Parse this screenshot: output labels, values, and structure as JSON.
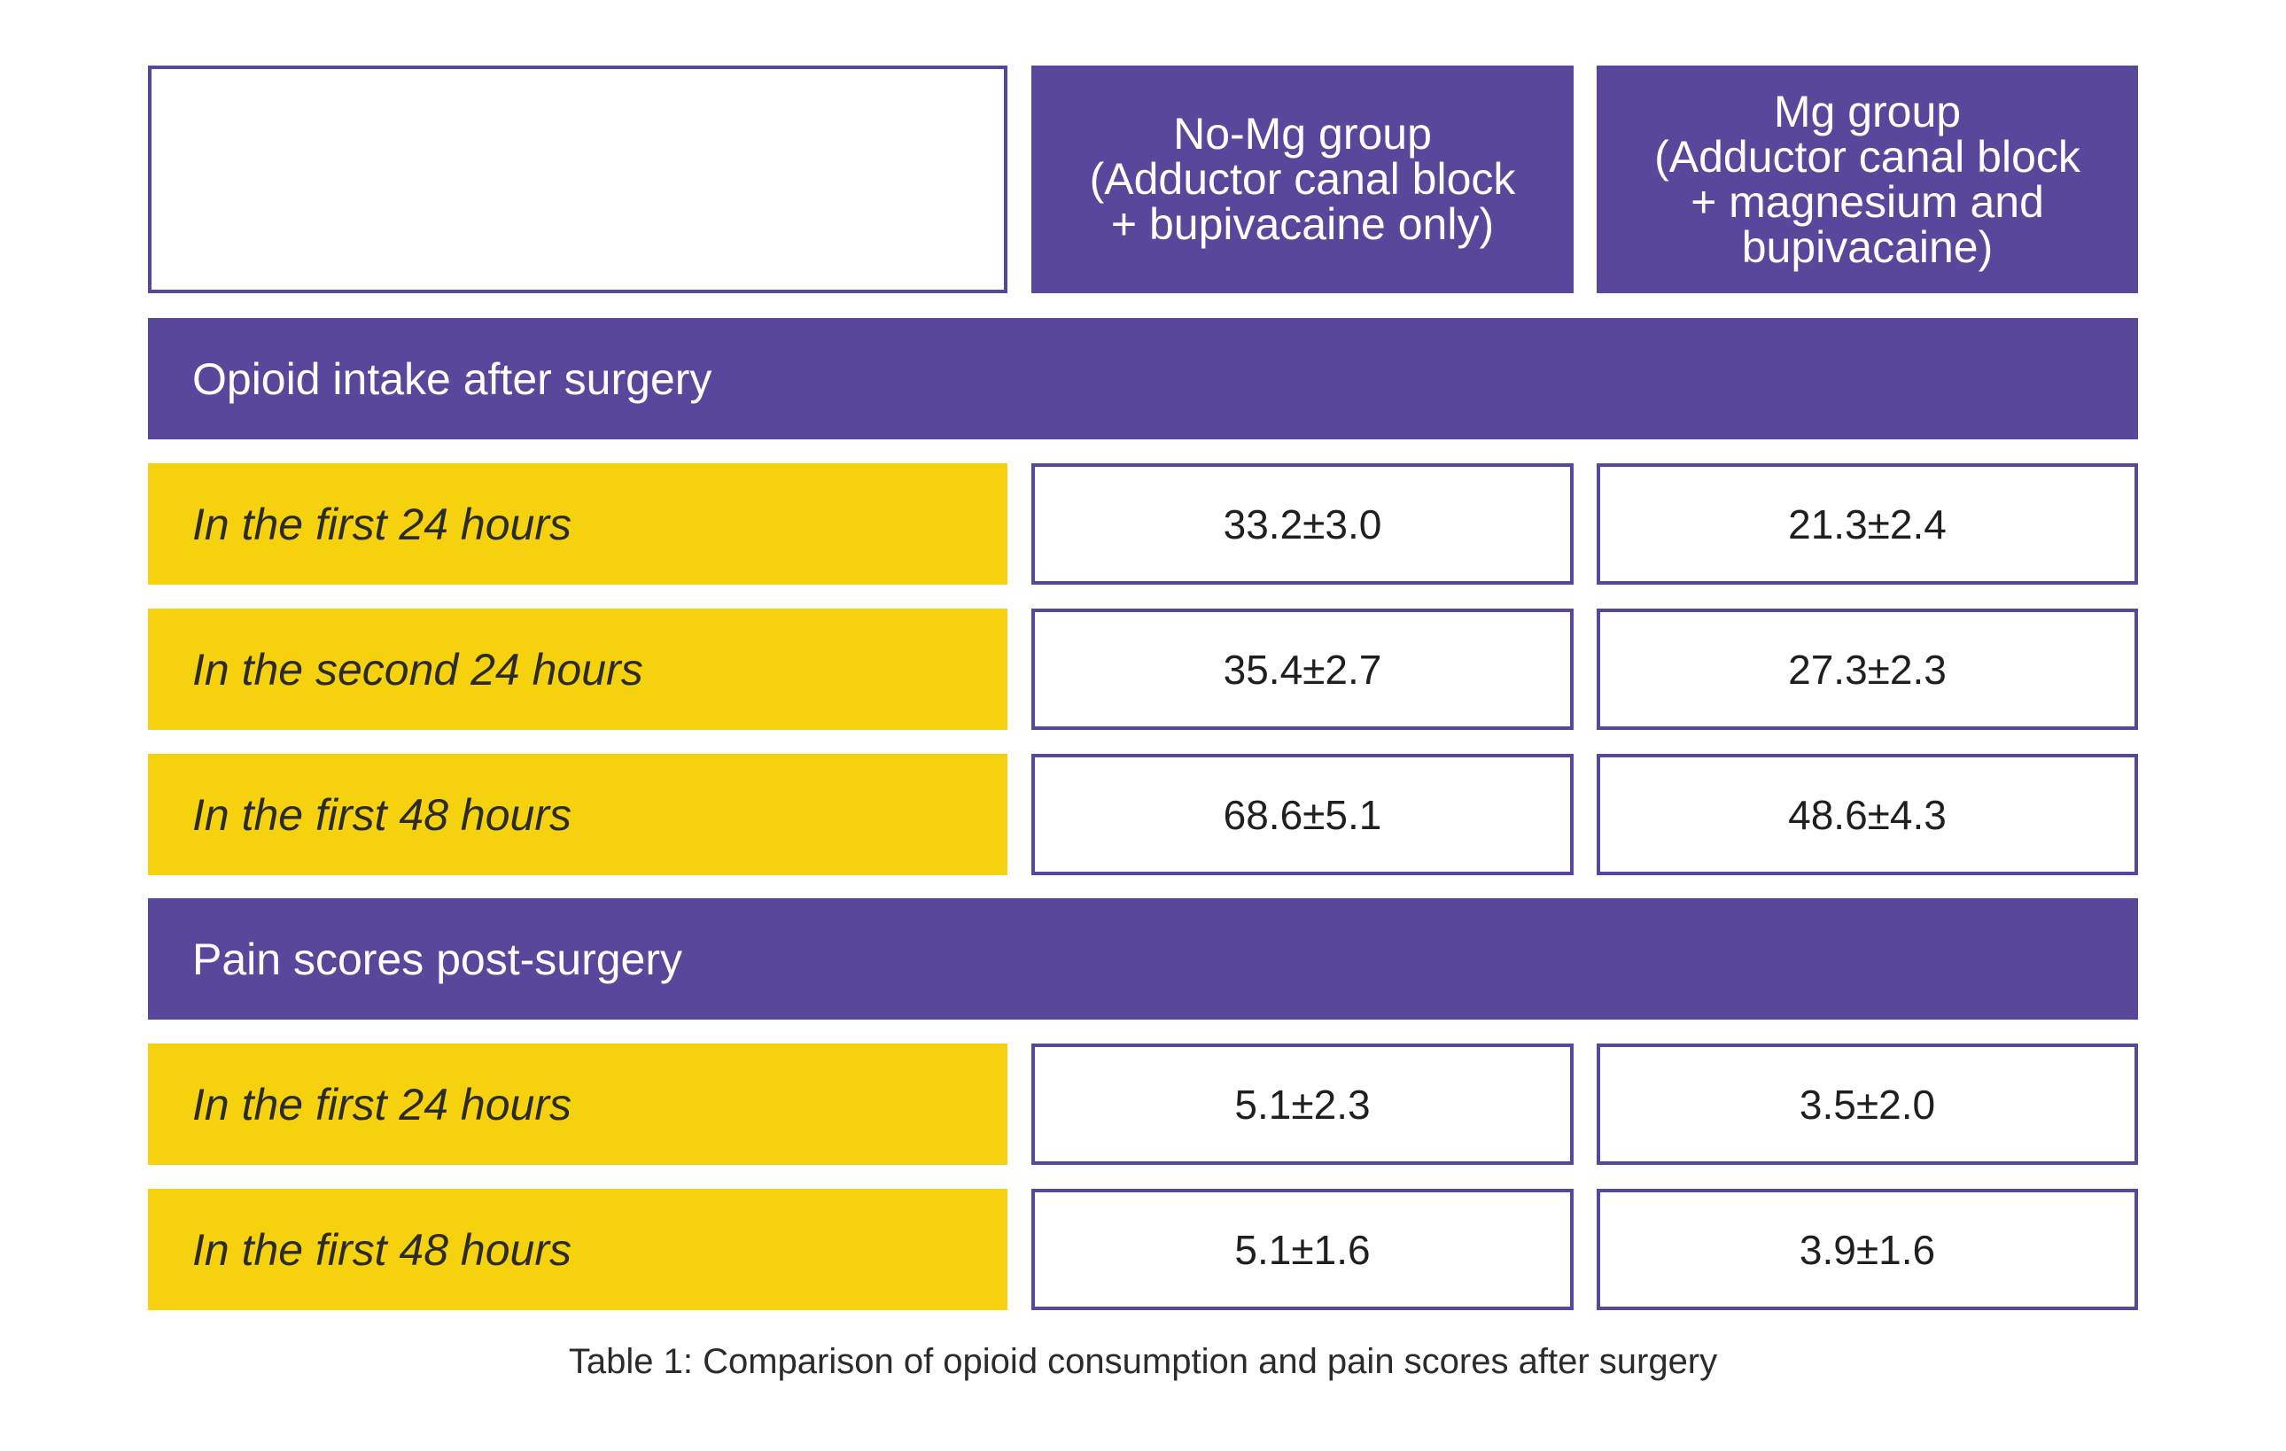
{
  "columns": {
    "no_mg": [
      "No-Mg group",
      "(Adductor canal block",
      "+ bupivacaine only)"
    ],
    "mg": [
      "Mg group",
      "(Adductor canal block",
      "+ magnesium and",
      "bupivacaine)"
    ]
  },
  "sections": [
    {
      "title": "Opioid intake after surgery",
      "rows": [
        {
          "label": "In the first 24 hours",
          "no_mg": "33.2±3.0",
          "mg": "21.3±2.4"
        },
        {
          "label": "In the second 24 hours",
          "no_mg": "35.4±2.7",
          "mg": "27.3±2.3"
        },
        {
          "label": "In the first 48 hours",
          "no_mg": "68.6±5.1",
          "mg": "48.6±4.3"
        }
      ]
    },
    {
      "title": "Pain scores post-surgery",
      "rows": [
        {
          "label": "In the first 24 hours",
          "no_mg": "5.1±2.3",
          "mg": "3.5±2.0"
        },
        {
          "label": "In the first 48 hours",
          "no_mg": "5.1±1.6",
          "mg": "3.9±1.6"
        }
      ]
    }
  ],
  "caption": "Table 1: Comparison of opioid consumption and pain scores after surgery",
  "colors": {
    "purple": "#58479a",
    "yellow": "#f6d10e"
  }
}
